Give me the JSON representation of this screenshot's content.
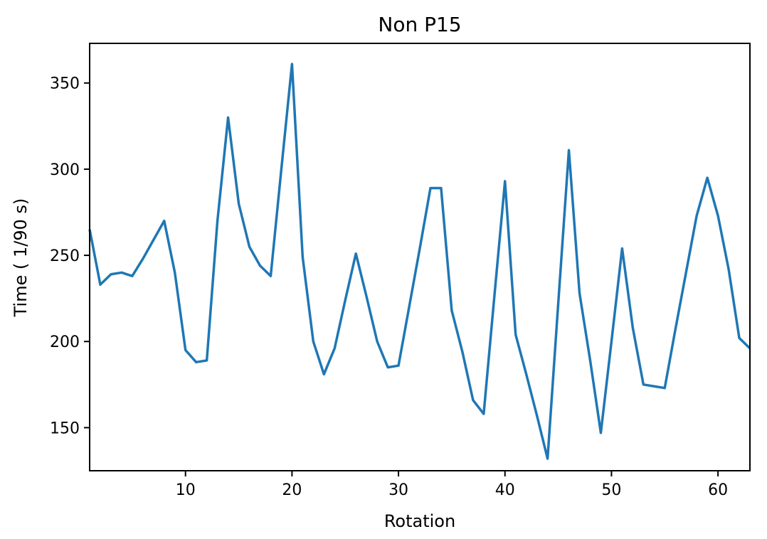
{
  "chart_data": {
    "type": "line",
    "title": "Non P15",
    "xlabel": "Rotation",
    "ylabel": "Time ( 1/90 s)",
    "xlim": [
      1,
      63
    ],
    "ylim": [
      125,
      373
    ],
    "xticks": [
      10,
      20,
      30,
      40,
      50,
      60
    ],
    "yticks": [
      150,
      200,
      250,
      300,
      350
    ],
    "grid": false,
    "series": [
      {
        "color": "#1f77b4",
        "x": [
          1,
          2,
          3,
          4,
          5,
          6,
          7,
          8,
          9,
          10,
          11,
          12,
          13,
          14,
          15,
          16,
          17,
          18,
          19,
          20,
          21,
          22,
          23,
          24,
          25,
          26,
          27,
          28,
          29,
          30,
          31,
          32,
          33,
          34,
          35,
          36,
          37,
          38,
          39,
          40,
          41,
          42,
          43,
          44,
          45,
          46,
          47,
          48,
          49,
          50,
          51,
          52,
          53,
          54,
          55,
          56,
          57,
          58,
          59,
          60,
          61,
          62,
          63
        ],
        "values": [
          265,
          233,
          239,
          240,
          238,
          248,
          259,
          270,
          240,
          195,
          188,
          189,
          270,
          330,
          280,
          255,
          244,
          238,
          300,
          361,
          249,
          200,
          181,
          196,
          224,
          251,
          226,
          200,
          185,
          186,
          220,
          254,
          289,
          289,
          218,
          194,
          166,
          158,
          226,
          293,
          204,
          181,
          157,
          132,
          222,
          311,
          228,
          189,
          147,
          200,
          254,
          208,
          175,
          174,
          173,
          207,
          240,
          273,
          295,
          273,
          242,
          202,
          196
        ]
      }
    ]
  }
}
